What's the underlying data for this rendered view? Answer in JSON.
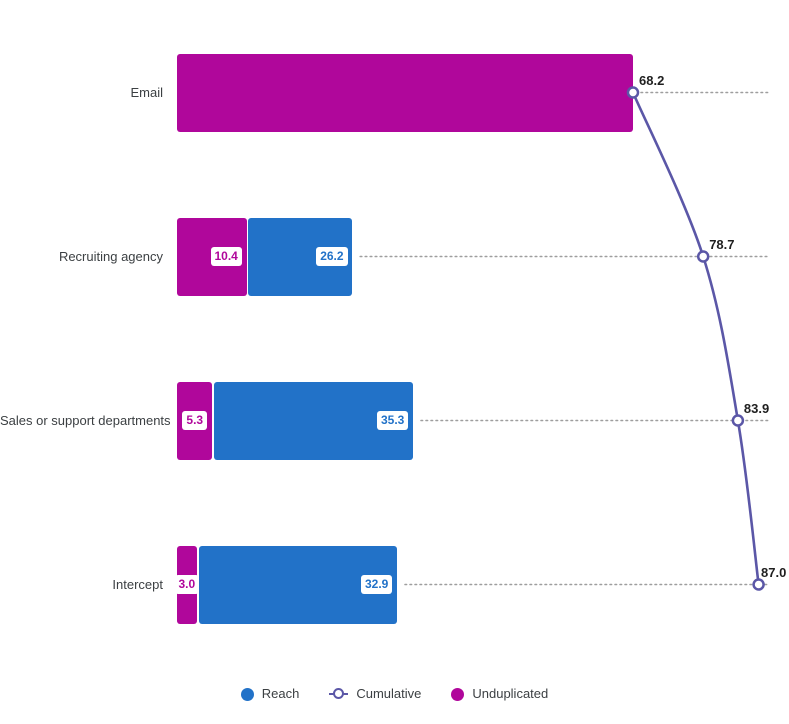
{
  "chart_data": {
    "type": "bar",
    "subtype": "horizontal-stacked-bars-with-cumulative-line",
    "title": "",
    "categories": [
      "Email",
      "Recruiting agency",
      "Sales or support departments",
      "Intercept"
    ],
    "series": [
      {
        "name": "Reach",
        "render": "bar",
        "color": "#2272C8",
        "values": [
          68.2,
          26.2,
          35.3,
          32.9
        ]
      },
      {
        "name": "Cumulative",
        "render": "line",
        "color": "#5B57A7",
        "values": [
          68.2,
          78.7,
          83.9,
          87.0
        ]
      },
      {
        "name": "Unduplicated",
        "render": "bar",
        "color": "#B0079B",
        "values": [
          68.2,
          10.4,
          5.3,
          3.0
        ]
      }
    ],
    "bar_value_labels": {
      "unduplicated": [
        null,
        "10.4",
        "5.3",
        "3.0"
      ],
      "reach": [
        null,
        "26.2",
        "35.3",
        "32.9"
      ]
    },
    "cumulative_point_labels": [
      "68.2",
      "78.7",
      "83.9",
      "87.0"
    ],
    "xlim": [
      0,
      88.4
    ],
    "grid": "dotted-row-leader-lines",
    "leader_line_color": "#9E9E9E",
    "point_label_color": "#1F1F1F",
    "category_label_color": "#3C4043",
    "legend": {
      "position": "bottom",
      "items": [
        {
          "label": "Reach",
          "marker": "filled-circle",
          "color": "#2272C8"
        },
        {
          "label": "Cumulative",
          "marker": "open-circle-line",
          "color": "#5B57A7"
        },
        {
          "label": "Unduplicated",
          "marker": "filled-circle",
          "color": "#B0079B"
        }
      ]
    }
  }
}
